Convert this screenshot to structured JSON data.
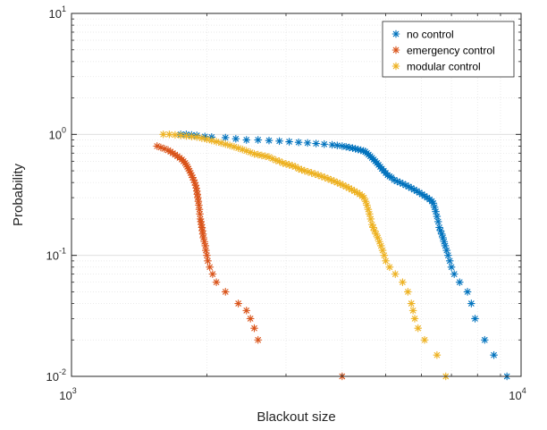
{
  "chart_data": {
    "type": "scatter",
    "title": "",
    "xlabel": "Blackout size",
    "ylabel": "Probability",
    "x_scale": "log",
    "y_scale": "log",
    "xlim": [
      1000,
      10000
    ],
    "ylim": [
      0.01,
      10
    ],
    "grid": true,
    "legend_position": "top-right",
    "x_ticks": [
      {
        "base": "10",
        "exp": "3"
      },
      {
        "base": "10",
        "exp": "4"
      }
    ],
    "y_ticks": [
      {
        "base": "10",
        "exp": "-2",
        "value": 0.01
      },
      {
        "base": "10",
        "exp": "-1",
        "value": 0.1
      },
      {
        "base": "10",
        "exp": "0",
        "value": 1
      },
      {
        "base": "10",
        "exp": "1",
        "value": 10
      }
    ],
    "marker": "asterisk",
    "series": [
      {
        "name": "no control",
        "color": "#0072BD",
        "points": [
          [
            1750,
            1.0
          ],
          [
            1800,
            1.0
          ],
          [
            1850,
            0.99
          ],
          [
            1900,
            0.98
          ],
          [
            1980,
            0.96
          ],
          [
            2050,
            0.95
          ],
          [
            2200,
            0.94
          ],
          [
            2320,
            0.92
          ],
          [
            2450,
            0.9
          ],
          [
            2600,
            0.9
          ],
          [
            2750,
            0.89
          ],
          [
            2900,
            0.88
          ],
          [
            3050,
            0.87
          ],
          [
            3200,
            0.86
          ],
          [
            3350,
            0.85
          ],
          [
            3500,
            0.84
          ],
          [
            3650,
            0.83
          ],
          [
            3800,
            0.82
          ],
          [
            3900,
            0.81
          ],
          [
            4000,
            0.8
          ],
          [
            4080,
            0.79
          ],
          [
            4150,
            0.78
          ],
          [
            4220,
            0.77
          ],
          [
            4280,
            0.76
          ],
          [
            4340,
            0.75
          ],
          [
            4400,
            0.74
          ],
          [
            4460,
            0.73
          ],
          [
            4500,
            0.72
          ],
          [
            4540,
            0.7
          ],
          [
            4580,
            0.68
          ],
          [
            4620,
            0.66
          ],
          [
            4660,
            0.64
          ],
          [
            4700,
            0.62
          ],
          [
            4740,
            0.6
          ],
          [
            4780,
            0.58
          ],
          [
            4820,
            0.56
          ],
          [
            4860,
            0.54
          ],
          [
            4900,
            0.52
          ],
          [
            4950,
            0.5
          ],
          [
            5000,
            0.48
          ],
          [
            5050,
            0.46
          ],
          [
            5100,
            0.45
          ],
          [
            5150,
            0.44
          ],
          [
            5220,
            0.42
          ],
          [
            5300,
            0.41
          ],
          [
            5380,
            0.4
          ],
          [
            5460,
            0.39
          ],
          [
            5540,
            0.38
          ],
          [
            5620,
            0.37
          ],
          [
            5700,
            0.36
          ],
          [
            5780,
            0.35
          ],
          [
            5860,
            0.34
          ],
          [
            5940,
            0.33
          ],
          [
            6020,
            0.32
          ],
          [
            6100,
            0.31
          ],
          [
            6180,
            0.3
          ],
          [
            6260,
            0.29
          ],
          [
            6330,
            0.28
          ],
          [
            6380,
            0.27
          ],
          [
            6420,
            0.25
          ],
          [
            6460,
            0.23
          ],
          [
            6500,
            0.21
          ],
          [
            6540,
            0.19
          ],
          [
            6580,
            0.17
          ],
          [
            6620,
            0.16
          ],
          [
            6660,
            0.15
          ],
          [
            6700,
            0.14
          ],
          [
            6740,
            0.13
          ],
          [
            6780,
            0.12
          ],
          [
            6830,
            0.11
          ],
          [
            6880,
            0.1
          ],
          [
            6940,
            0.09
          ],
          [
            7000,
            0.08
          ],
          [
            7100,
            0.07
          ],
          [
            7300,
            0.06
          ],
          [
            7600,
            0.05
          ],
          [
            7750,
            0.04
          ],
          [
            7900,
            0.03
          ],
          [
            8300,
            0.02
          ],
          [
            8700,
            0.015
          ],
          [
            9300,
            0.01
          ]
        ]
      },
      {
        "name": "emergency control",
        "color": "#D95319",
        "points": [
          [
            1550,
            0.8
          ],
          [
            1580,
            0.78
          ],
          [
            1610,
            0.76
          ],
          [
            1640,
            0.74
          ],
          [
            1660,
            0.72
          ],
          [
            1680,
            0.7
          ],
          [
            1700,
            0.68
          ],
          [
            1720,
            0.66
          ],
          [
            1740,
            0.64
          ],
          [
            1760,
            0.62
          ],
          [
            1775,
            0.6
          ],
          [
            1790,
            0.58
          ],
          [
            1800,
            0.56
          ],
          [
            1810,
            0.54
          ],
          [
            1820,
            0.52
          ],
          [
            1830,
            0.5
          ],
          [
            1840,
            0.48
          ],
          [
            1850,
            0.46
          ],
          [
            1860,
            0.44
          ],
          [
            1870,
            0.42
          ],
          [
            1880,
            0.4
          ],
          [
            1888,
            0.38
          ],
          [
            1895,
            0.36
          ],
          [
            1900,
            0.34
          ],
          [
            1905,
            0.32
          ],
          [
            1910,
            0.3
          ],
          [
            1915,
            0.28
          ],
          [
            1920,
            0.26
          ],
          [
            1925,
            0.24
          ],
          [
            1930,
            0.22
          ],
          [
            1935,
            0.2
          ],
          [
            1940,
            0.19
          ],
          [
            1945,
            0.18
          ],
          [
            1950,
            0.17
          ],
          [
            1955,
            0.16
          ],
          [
            1960,
            0.15
          ],
          [
            1965,
            0.14
          ],
          [
            1975,
            0.13
          ],
          [
            1985,
            0.12
          ],
          [
            1990,
            0.11
          ],
          [
            2000,
            0.1
          ],
          [
            2010,
            0.09
          ],
          [
            2030,
            0.08
          ],
          [
            2060,
            0.07
          ],
          [
            2100,
            0.06
          ],
          [
            2200,
            0.05
          ],
          [
            2350,
            0.04
          ],
          [
            2450,
            0.035
          ],
          [
            2500,
            0.03
          ],
          [
            2550,
            0.025
          ],
          [
            2600,
            0.02
          ],
          [
            4000,
            0.01
          ]
        ]
      },
      {
        "name": "modular control",
        "color": "#EDB120",
        "points": [
          [
            1600,
            1.0
          ],
          [
            1650,
            1.0
          ],
          [
            1700,
            0.99
          ],
          [
            1750,
            0.98
          ],
          [
            1800,
            0.97
          ],
          [
            1850,
            0.96
          ],
          [
            1900,
            0.95
          ],
          [
            1950,
            0.93
          ],
          [
            2000,
            0.91
          ],
          [
            2050,
            0.89
          ],
          [
            2100,
            0.87
          ],
          [
            2150,
            0.85
          ],
          [
            2200,
            0.83
          ],
          [
            2250,
            0.81
          ],
          [
            2300,
            0.79
          ],
          [
            2350,
            0.77
          ],
          [
            2400,
            0.75
          ],
          [
            2450,
            0.73
          ],
          [
            2500,
            0.71
          ],
          [
            2550,
            0.69
          ],
          [
            2600,
            0.68
          ],
          [
            2650,
            0.67
          ],
          [
            2700,
            0.66
          ],
          [
            2750,
            0.65
          ],
          [
            2800,
            0.63
          ],
          [
            2850,
            0.61
          ],
          [
            2900,
            0.6
          ],
          [
            2950,
            0.58
          ],
          [
            3000,
            0.57
          ],
          [
            3050,
            0.56
          ],
          [
            3100,
            0.55
          ],
          [
            3150,
            0.54
          ],
          [
            3200,
            0.52
          ],
          [
            3250,
            0.51
          ],
          [
            3300,
            0.5
          ],
          [
            3360,
            0.49
          ],
          [
            3420,
            0.48
          ],
          [
            3480,
            0.47
          ],
          [
            3540,
            0.46
          ],
          [
            3600,
            0.45
          ],
          [
            3660,
            0.44
          ],
          [
            3720,
            0.43
          ],
          [
            3780,
            0.42
          ],
          [
            3840,
            0.41
          ],
          [
            3900,
            0.4
          ],
          [
            3960,
            0.39
          ],
          [
            4020,
            0.38
          ],
          [
            4080,
            0.37
          ],
          [
            4140,
            0.36
          ],
          [
            4200,
            0.35
          ],
          [
            4260,
            0.34
          ],
          [
            4320,
            0.33
          ],
          [
            4380,
            0.32
          ],
          [
            4430,
            0.31
          ],
          [
            4470,
            0.3
          ],
          [
            4510,
            0.28
          ],
          [
            4540,
            0.26
          ],
          [
            4570,
            0.24
          ],
          [
            4600,
            0.22
          ],
          [
            4630,
            0.2
          ],
          [
            4660,
            0.18
          ],
          [
            4690,
            0.17
          ],
          [
            4720,
            0.16
          ],
          [
            4760,
            0.15
          ],
          [
            4800,
            0.14
          ],
          [
            4840,
            0.13
          ],
          [
            4880,
            0.12
          ],
          [
            4920,
            0.11
          ],
          [
            4960,
            0.1
          ],
          [
            5000,
            0.09
          ],
          [
            5100,
            0.08
          ],
          [
            5250,
            0.07
          ],
          [
            5450,
            0.06
          ],
          [
            5600,
            0.05
          ],
          [
            5700,
            0.04
          ],
          [
            5750,
            0.035
          ],
          [
            5800,
            0.03
          ],
          [
            5900,
            0.025
          ],
          [
            6100,
            0.02
          ],
          [
            6500,
            0.015
          ],
          [
            6800,
            0.01
          ]
        ]
      }
    ]
  }
}
